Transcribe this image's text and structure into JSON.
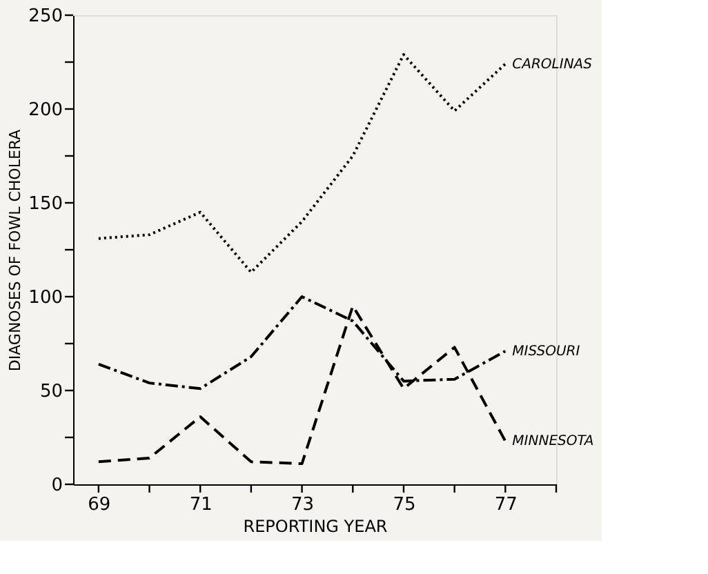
{
  "chart_data": {
    "type": "line",
    "xlabel": "REPORTING YEAR",
    "ylabel": "DIAGNOSES OF FOWL CHOLERA",
    "x": [
      69,
      70,
      71,
      72,
      73,
      74,
      75,
      76,
      77
    ],
    "series": [
      {
        "name": "CAROLINAS",
        "color": "#000000",
        "line_style": "dotted",
        "values": [
          131,
          133,
          145,
          113,
          140,
          175,
          229,
          199,
          224
        ]
      },
      {
        "name": "MISSOURI",
        "color": "#000000",
        "line_style": "dashdot",
        "values": [
          64,
          54,
          51,
          68,
          100,
          87,
          55,
          56,
          71
        ]
      },
      {
        "name": "MINNESOTA",
        "color": "#000000",
        "line_style": "dashed",
        "values": [
          12,
          14,
          36,
          12,
          11,
          95,
          51,
          73,
          23
        ]
      }
    ],
    "xlim": [
      68.5,
      78
    ],
    "ylim": [
      0,
      250
    ],
    "xticks": [
      69,
      {
        "value": 70,
        "label": null
      },
      71,
      {
        "value": 72,
        "label": null
      },
      73,
      {
        "value": 74,
        "label": null
      },
      75,
      {
        "value": 76,
        "label": null
      },
      77,
      {
        "value": 78,
        "label": null
      }
    ],
    "yticks": [
      0,
      {
        "value": 25,
        "label": null
      },
      50,
      {
        "value": 75,
        "label": null
      },
      100,
      {
        "value": 125,
        "label": null
      },
      150,
      {
        "value": 175,
        "label": null
      },
      200,
      {
        "value": 225,
        "label": null
      },
      250
    ],
    "grid": false,
    "marker": "none"
  }
}
